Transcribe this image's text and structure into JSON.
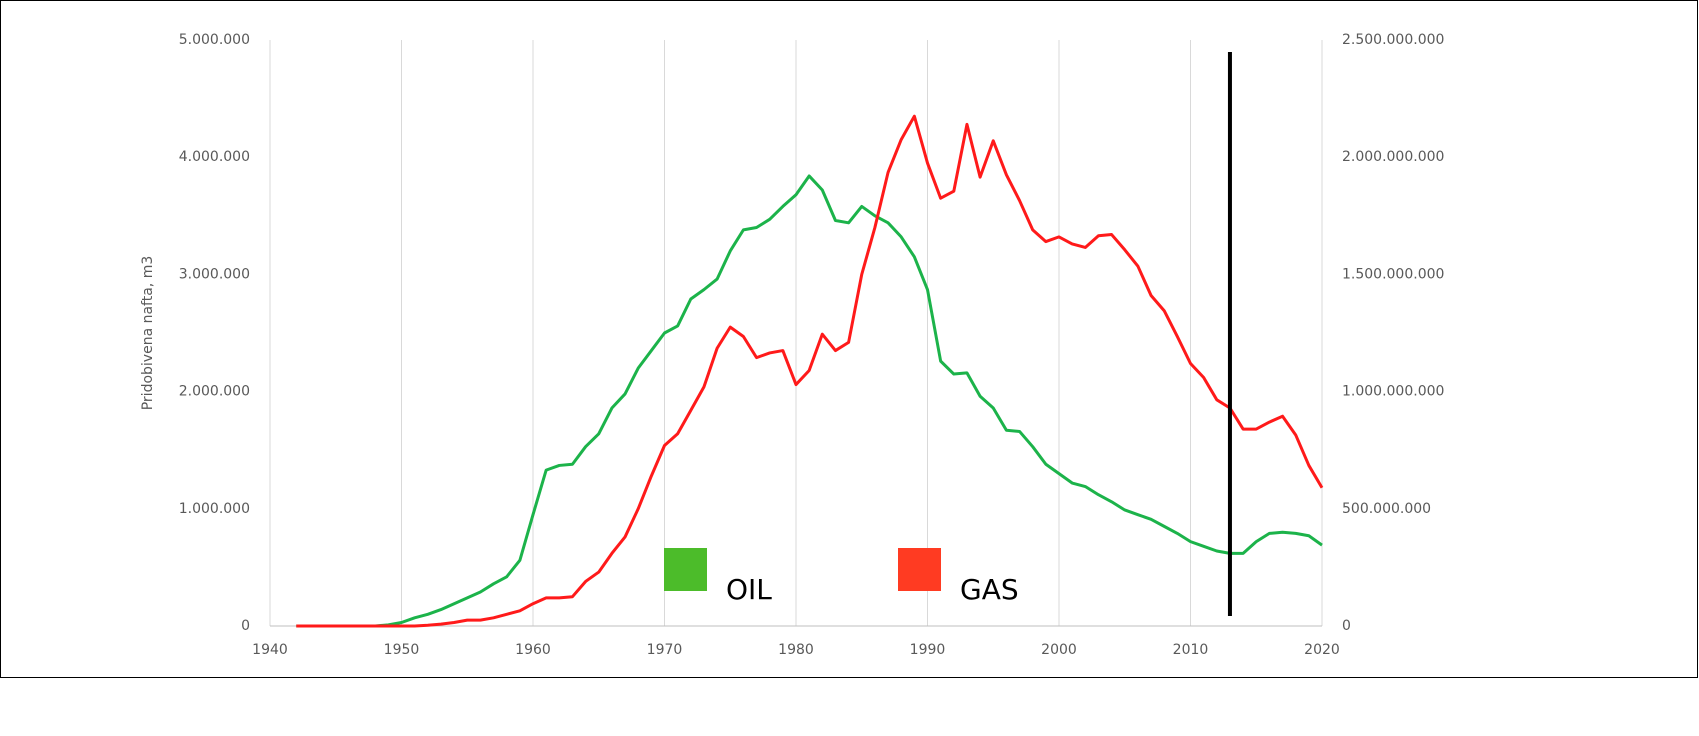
{
  "chart_data": {
    "type": "line",
    "ylabel": "Pridobivena nafta, m3",
    "x": [
      1942,
      1943,
      1944,
      1945,
      1946,
      1947,
      1948,
      1949,
      1950,
      1951,
      1952,
      1953,
      1954,
      1955,
      1956,
      1957,
      1958,
      1959,
      1960,
      1961,
      1962,
      1963,
      1964,
      1965,
      1966,
      1967,
      1968,
      1969,
      1970,
      1971,
      1972,
      1973,
      1974,
      1975,
      1976,
      1977,
      1978,
      1979,
      1980,
      1981,
      1982,
      1983,
      1984,
      1985,
      1986,
      1987,
      1988,
      1989,
      1990,
      1991,
      1992,
      1993,
      1994,
      1995,
      1996,
      1997,
      1998,
      1999,
      2000,
      2001,
      2002,
      2003,
      2004,
      2005,
      2006,
      2007,
      2008,
      2009,
      2010,
      2011,
      2012,
      2013,
      2014,
      2015,
      2016,
      2017,
      2018,
      2019,
      2020
    ],
    "series": [
      {
        "name": "OIL",
        "color": "#1cb34a",
        "legend_color": "#4cbc2a",
        "axis": "y",
        "values": [
          0,
          0,
          0,
          0,
          0,
          0,
          0,
          10000,
          30000,
          70000,
          100000,
          140000,
          190000,
          240000,
          290000,
          360000,
          420000,
          560000,
          950000,
          1330000,
          1370000,
          1380000,
          1530000,
          1640000,
          1860000,
          1980000,
          2200000,
          2350000,
          2500000,
          2560000,
          2790000,
          2870000,
          2960000,
          3200000,
          3380000,
          3400000,
          3470000,
          3580000,
          3680000,
          3840000,
          3720000,
          3460000,
          3440000,
          3580000,
          3500000,
          3440000,
          3320000,
          3150000,
          2870000,
          2260000,
          2150000,
          2160000,
          1960000,
          1860000,
          1670000,
          1660000,
          1530000,
          1380000,
          1300000,
          1220000,
          1190000,
          1120000,
          1060000,
          990000,
          950000,
          910000,
          850000,
          790000,
          720000,
          680000,
          640000,
          620000,
          620000,
          720000,
          790000,
          800000,
          790000,
          770000,
          690000
        ]
      },
      {
        "name": "GAS",
        "color": "#ff1a1a",
        "legend_color": "#ff3b22",
        "axis": "y2",
        "values": [
          0,
          0,
          0,
          0,
          0,
          0,
          0,
          0,
          0,
          0,
          3000000,
          8000000,
          15000000,
          25000000,
          25000000,
          35000000,
          50000000,
          65000000,
          95000000,
          120000000,
          120000000,
          125000000,
          190000000,
          230000000,
          310000000,
          380000000,
          500000000,
          640000000,
          770000000,
          820000000,
          920000000,
          1020000000,
          1185000000,
          1275000000,
          1235000000,
          1145000000,
          1165000000,
          1175000000,
          1030000000,
          1090000000,
          1245000000,
          1175000000,
          1210000000,
          1500000000,
          1700000000,
          1935000000,
          2075000000,
          2175000000,
          1975000000,
          1825000000,
          1855000000,
          2140000000,
          1915000000,
          2070000000,
          1925000000,
          1815000000,
          1690000000,
          1640000000,
          1660000000,
          1630000000,
          1615000000,
          1665000000,
          1670000000,
          1605000000,
          1535000000,
          1410000000,
          1345000000,
          1235000000,
          1120000000,
          1060000000,
          965000000,
          930000000,
          840000000,
          840000000,
          870000000,
          895000000,
          815000000,
          685000000,
          590000000
        ]
      }
    ],
    "xlim": [
      1940,
      2020
    ],
    "xticks": [
      1940,
      1950,
      1960,
      1970,
      1980,
      1990,
      2000,
      2010,
      2020
    ],
    "ylim": [
      0,
      5000000
    ],
    "yticks": [
      0,
      {
        "value": 1000000,
        "label": "1.000.000"
      },
      {
        "value": 2000000,
        "label": "2.000.000"
      },
      {
        "value": 3000000,
        "label": "3.000.000"
      },
      {
        "value": 4000000,
        "label": "4.000.000"
      },
      {
        "value": 5000000,
        "label": "5.000.000"
      }
    ],
    "y2lim": [
      0,
      2500000000
    ],
    "y2ticks": [
      0,
      {
        "value": 500000000,
        "label": "500.000.000"
      },
      {
        "value": 1000000000,
        "label": "1.000.000.000"
      },
      {
        "value": 1500000000,
        "label": "1.500.000.000"
      },
      {
        "value": 2000000000,
        "label": "2.000.000.000"
      },
      {
        "value": 2500000000,
        "label": "2.500.000.000"
      }
    ],
    "grid": "x",
    "reference_line": {
      "x": 2013,
      "color": "#000000"
    }
  }
}
